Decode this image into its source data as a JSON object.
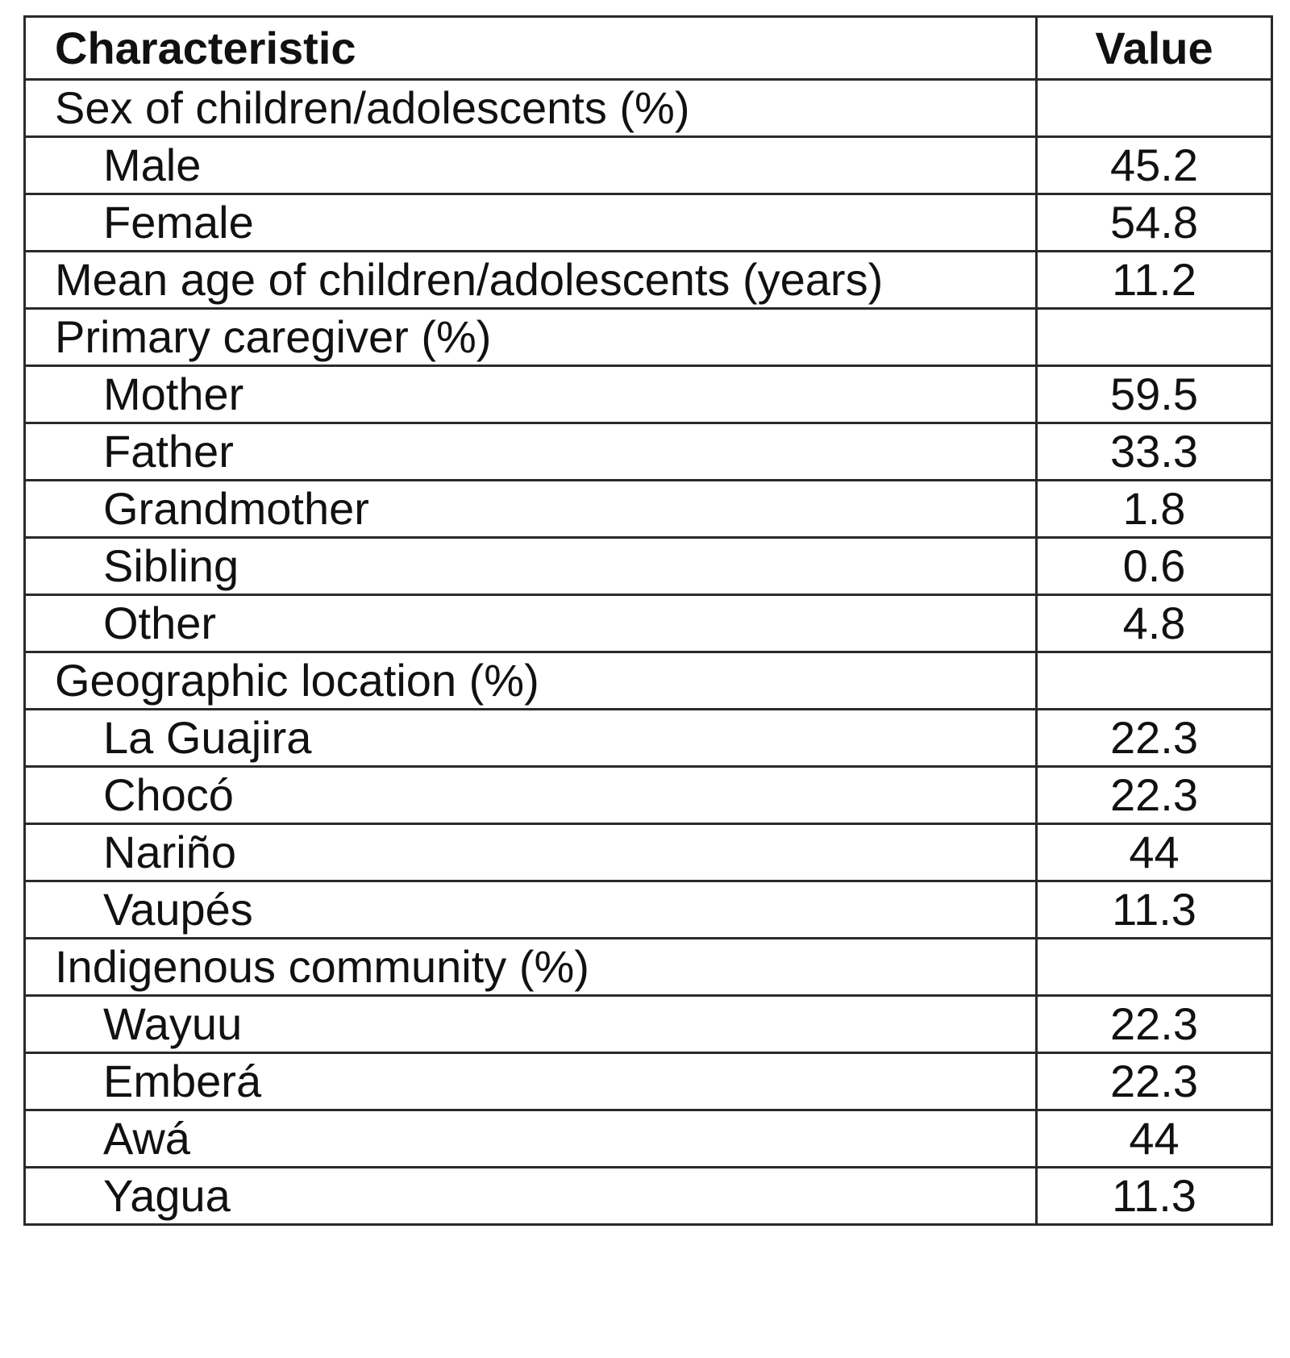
{
  "table": {
    "headers": {
      "characteristic": "Characteristic",
      "value": "Value"
    },
    "rows": [
      {
        "label": "Sex of children/adolescents (%)",
        "value": "",
        "indent": 0
      },
      {
        "label": "Male",
        "value": "45.2",
        "indent": 1
      },
      {
        "label": "Female",
        "value": "54.8",
        "indent": 1
      },
      {
        "label": "Mean age of children/adolescents (years)",
        "value": "11.2",
        "indent": 0
      },
      {
        "label": "Primary caregiver (%)",
        "value": "",
        "indent": 0
      },
      {
        "label": "Mother",
        "value": "59.5",
        "indent": 1
      },
      {
        "label": "Father",
        "value": "33.3",
        "indent": 1
      },
      {
        "label": "Grandmother",
        "value": "1.8",
        "indent": 1
      },
      {
        "label": "Sibling",
        "value": "0.6",
        "indent": 1
      },
      {
        "label": "Other",
        "value": "4.8",
        "indent": 1
      },
      {
        "label": "Geographic location (%)",
        "value": "",
        "indent": 0
      },
      {
        "label": "La Guajira",
        "value": "22.3",
        "indent": 1
      },
      {
        "label": "Chocó",
        "value": "22.3",
        "indent": 1
      },
      {
        "label": "Nariño",
        "value": "44",
        "indent": 1
      },
      {
        "label": "Vaupés",
        "value": "11.3",
        "indent": 1
      },
      {
        "label": "Indigenous community (%)",
        "value": "",
        "indent": 0
      },
      {
        "label": "Wayuu",
        "value": "22.3",
        "indent": 1
      },
      {
        "label": "Emberá",
        "value": "22.3",
        "indent": 1
      },
      {
        "label": "Awá",
        "value": "44",
        "indent": 1
      },
      {
        "label": "Yagua",
        "value": "11.3",
        "indent": 1
      }
    ]
  }
}
